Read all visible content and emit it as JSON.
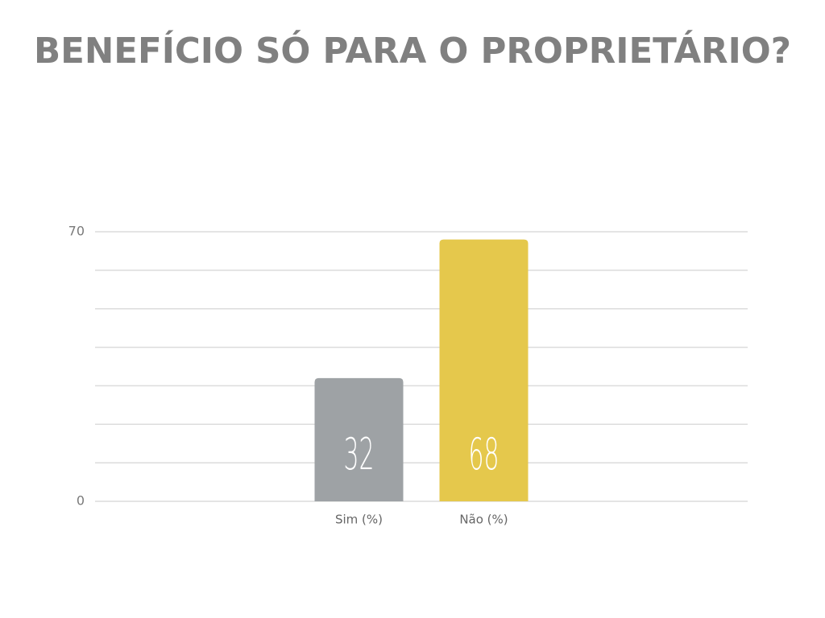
{
  "chart_data": {
    "type": "bar",
    "title": "BENEFÍCIO SÓ PARA O PROPRIETÁRIO?",
    "categories": [
      "Sim (%)",
      "Não (%)"
    ],
    "values": [
      32,
      68
    ],
    "colors": [
      "#9ea2a5",
      "#e5c84c"
    ],
    "ylim": [
      0,
      70
    ],
    "yticks": [
      0,
      70
    ],
    "y_gridlines": [
      0,
      10,
      20,
      30,
      40,
      50,
      60,
      70
    ],
    "grid": true,
    "value_labels_inside": true
  }
}
